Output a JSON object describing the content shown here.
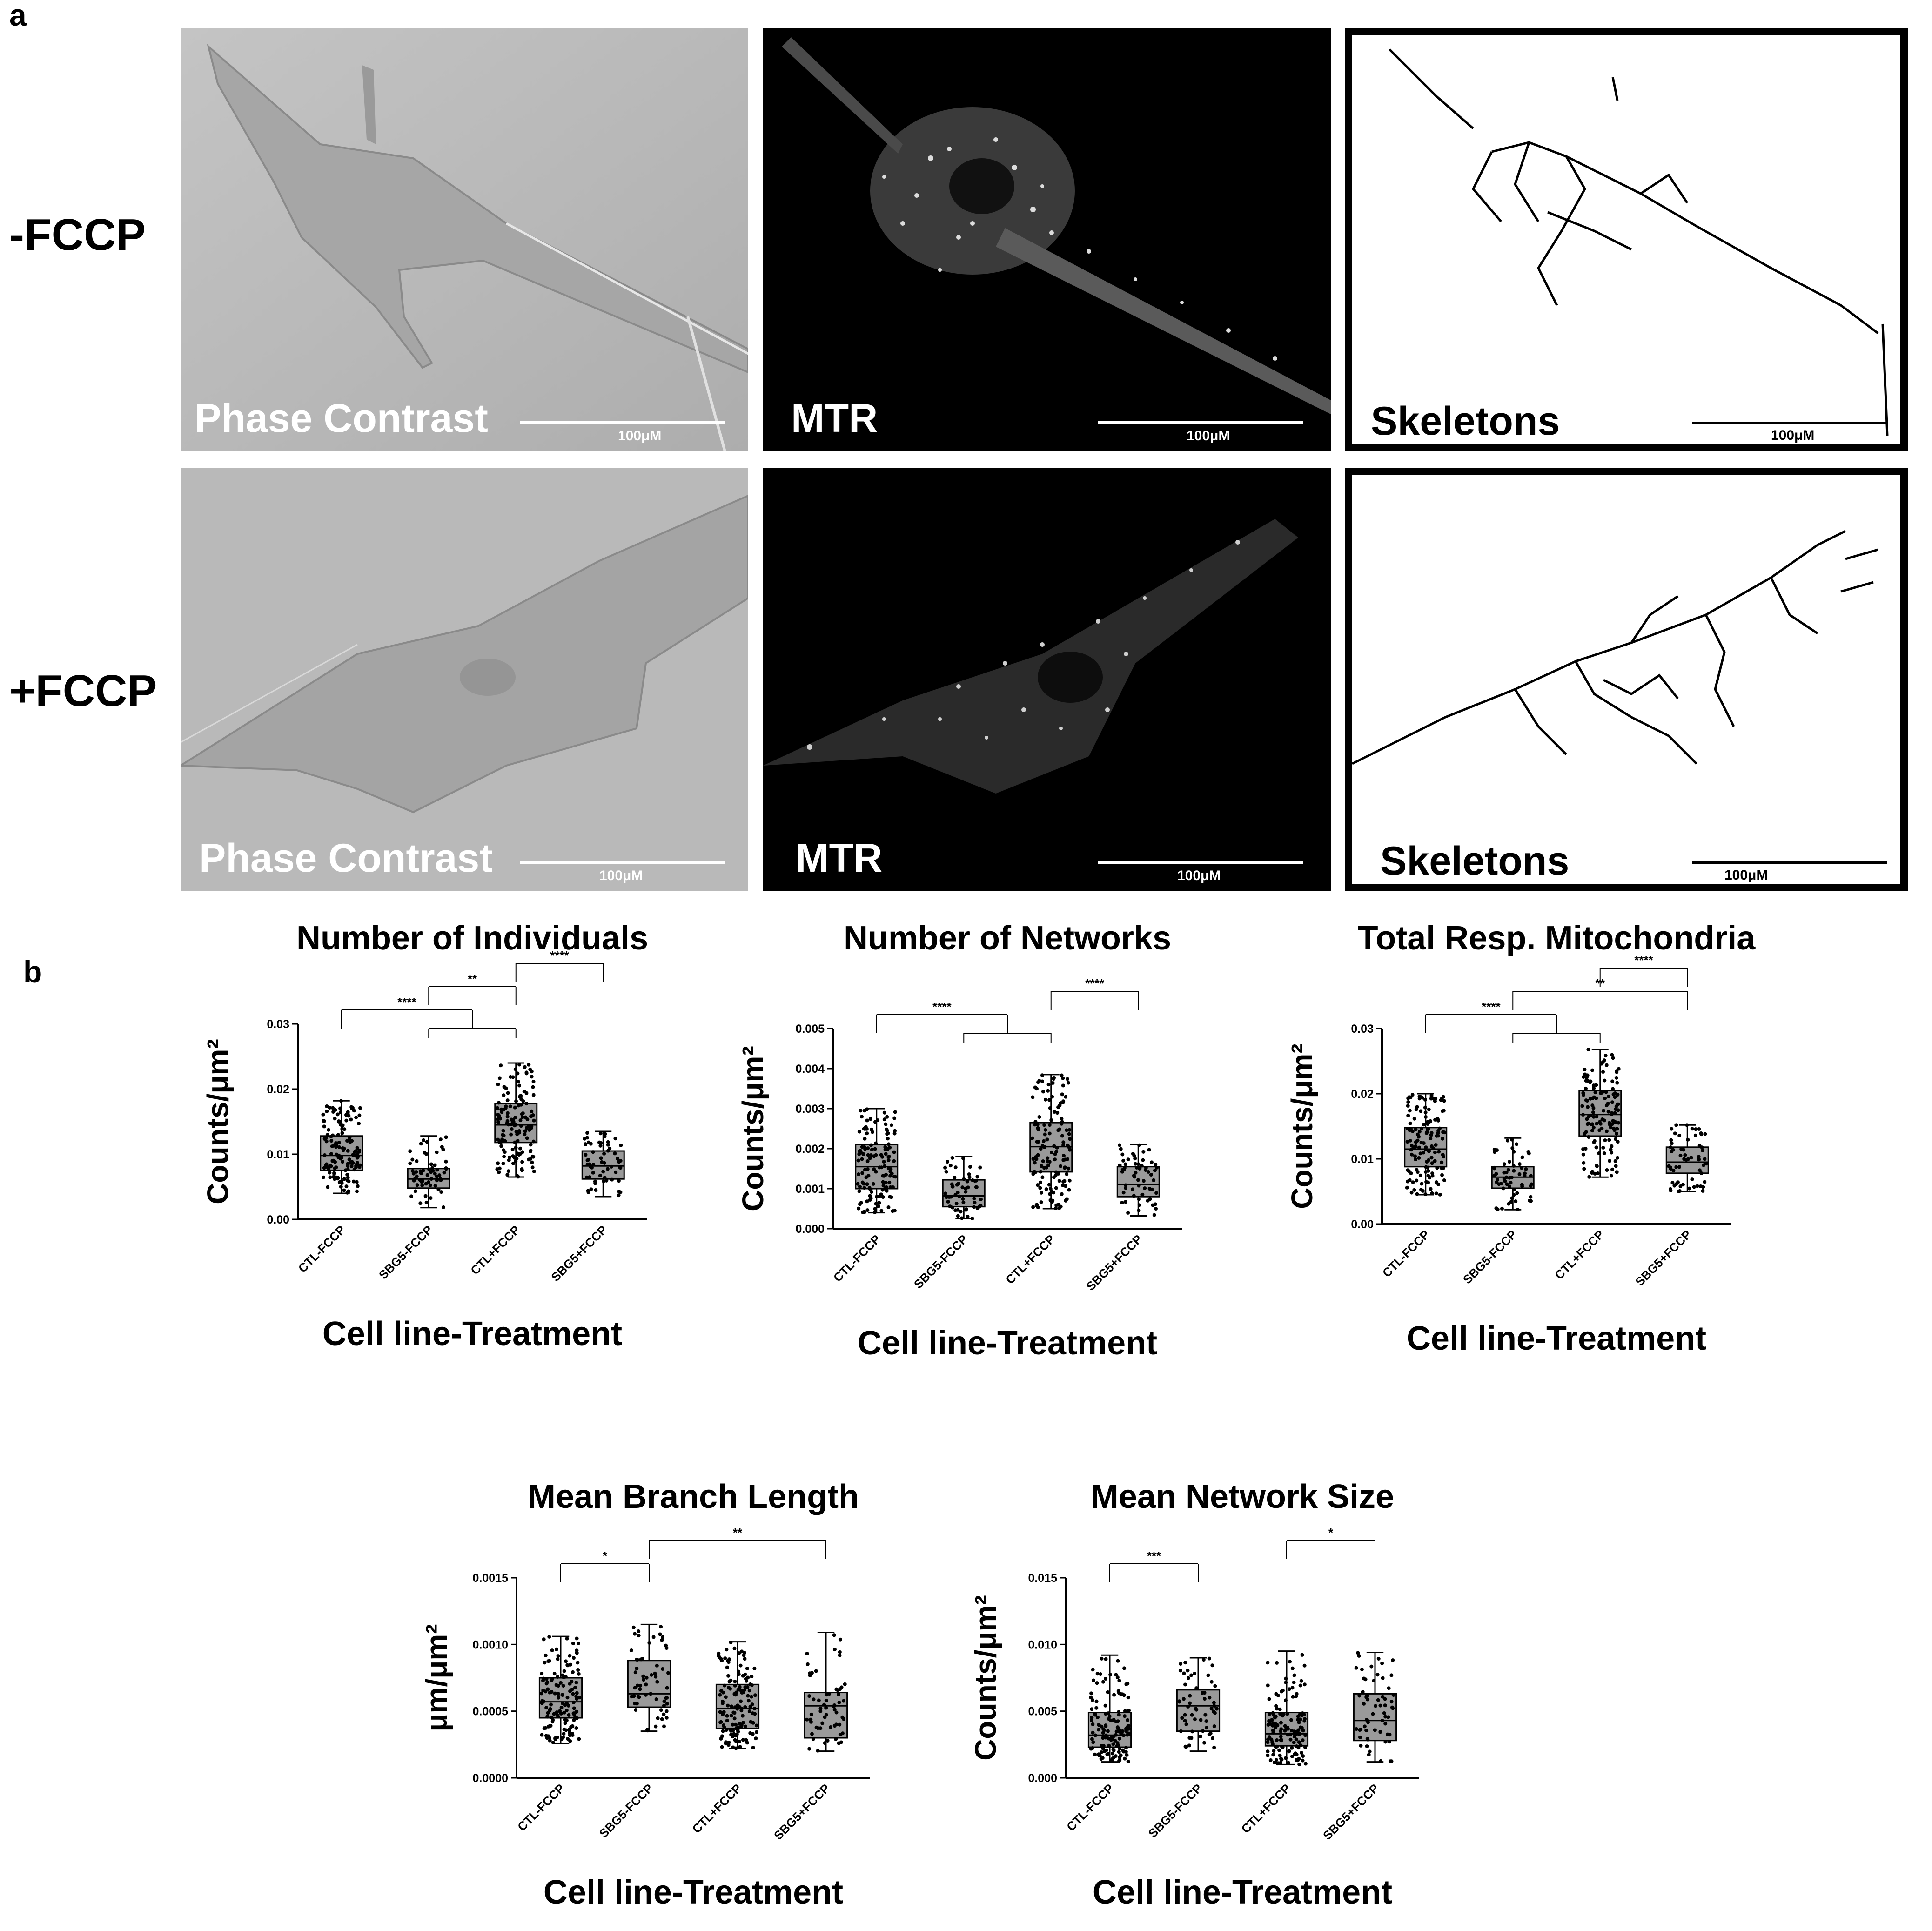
{
  "panel_a": {
    "letter": "a",
    "rows": [
      {
        "label": "-FCCP",
        "images": [
          {
            "label": "Phase Contrast",
            "scale": "100μM"
          },
          {
            "label": "MTR",
            "scale": "100μM"
          },
          {
            "label": "Skeletons",
            "scale": "100μM"
          }
        ]
      },
      {
        "label": "+FCCP",
        "images": [
          {
            "label": "Phase Contrast",
            "scale": "100μM"
          },
          {
            "label": "MTR",
            "scale": "100μM"
          },
          {
            "label": "Skeletons",
            "scale": "100μM"
          }
        ]
      }
    ]
  },
  "panel_b": {
    "letter": "b"
  },
  "chart_data": [
    {
      "type": "box",
      "title": "Number of Individuals",
      "xlabel": "Cell line-Treatment",
      "ylabel": "Counts/μm²",
      "ylim": [
        0,
        0.03
      ],
      "yticks": [
        "0.00",
        "0.01",
        "0.02",
        "0.03"
      ],
      "categories": [
        "CTL-FCCP",
        "SBG5-FCCP",
        "CTL+FCCP",
        "SBG5+FCCP"
      ],
      "boxes": [
        {
          "min": 0.004,
          "q1": 0.0075,
          "median": 0.0098,
          "q3": 0.0128,
          "max": 0.0182
        },
        {
          "min": 0.0018,
          "q1": 0.0048,
          "median": 0.0062,
          "q3": 0.0078,
          "max": 0.0128
        },
        {
          "min": 0.0065,
          "q1": 0.0118,
          "median": 0.0145,
          "q3": 0.0178,
          "max": 0.024
        },
        {
          "min": 0.0035,
          "q1": 0.0062,
          "median": 0.0082,
          "q3": 0.0105,
          "max": 0.0135
        }
      ],
      "n_points": [
        140,
        60,
        140,
        60
      ],
      "significance": [
        {
          "from": 0,
          "to": [
            1,
            2
          ],
          "label": "****"
        },
        {
          "from": 1,
          "to": 2,
          "label": "**"
        },
        {
          "from": 2,
          "to": 3,
          "label": "****"
        }
      ]
    },
    {
      "type": "box",
      "title": "Number of Networks",
      "xlabel": "Cell line-Treatment",
      "ylabel": "Counts/μm²",
      "ylim": [
        0,
        0.005
      ],
      "yticks": [
        "0.000",
        "0.001",
        "0.002",
        "0.003",
        "0.004",
        "0.005"
      ],
      "categories": [
        "CTL-FCCP",
        "SBG5-FCCP",
        "CTL+FCCP",
        "SBG5+FCCP"
      ],
      "boxes": [
        {
          "min": 0.0004,
          "q1": 0.001,
          "median": 0.00155,
          "q3": 0.0021,
          "max": 0.003
        },
        {
          "min": 0.00025,
          "q1": 0.00055,
          "median": 0.00082,
          "q3": 0.00122,
          "max": 0.0018
        },
        {
          "min": 0.0005,
          "q1": 0.00142,
          "median": 0.00205,
          "q3": 0.00265,
          "max": 0.00385
        },
        {
          "min": 0.00032,
          "q1": 0.0008,
          "median": 0.0011,
          "q3": 0.00155,
          "max": 0.0021
        }
      ],
      "n_points": [
        140,
        60,
        140,
        60
      ],
      "significance": [
        {
          "from": 0,
          "to": [
            1,
            2
          ],
          "label": "****"
        },
        {
          "from": 2,
          "to": 3,
          "label": "****"
        }
      ]
    },
    {
      "type": "box",
      "title": "Total Resp. Mitochondria",
      "xlabel": "Cell line-Treatment",
      "ylabel": "Counts/μm²",
      "ylim": [
        0,
        0.03
      ],
      "yticks": [
        "0.00",
        "0.01",
        "0.02",
        "0.03"
      ],
      "categories": [
        "CTL-FCCP",
        "SBG5-FCCP",
        "CTL+FCCP",
        "SBG5+FCCP"
      ],
      "boxes": [
        {
          "min": 0.0045,
          "q1": 0.0088,
          "median": 0.0115,
          "q3": 0.0148,
          "max": 0.02
        },
        {
          "min": 0.0022,
          "q1": 0.0055,
          "median": 0.0072,
          "q3": 0.0088,
          "max": 0.0132
        },
        {
          "min": 0.0072,
          "q1": 0.0135,
          "median": 0.0168,
          "q3": 0.0205,
          "max": 0.0268
        },
        {
          "min": 0.005,
          "q1": 0.0078,
          "median": 0.0095,
          "q3": 0.0118,
          "max": 0.0152
        }
      ],
      "n_points": [
        140,
        60,
        140,
        60
      ],
      "significance": [
        {
          "from": 0,
          "to": [
            1,
            2
          ],
          "label": "****"
        },
        {
          "from": 1,
          "to": 3,
          "label": "**"
        },
        {
          "from": 2,
          "to": 3,
          "label": "****"
        }
      ]
    },
    {
      "type": "box",
      "title": "Mean Branch Length",
      "xlabel": "Cell line-Treatment",
      "ylabel": "μm/μm²",
      "ylim": [
        0,
        0.0015
      ],
      "yticks": [
        "0.0000",
        "0.0005",
        "0.0010",
        "0.0015"
      ],
      "categories": [
        "CTL-FCCP",
        "SBG5-FCCP",
        "CTL+FCCP",
        "SBG5+FCCP"
      ],
      "boxes": [
        {
          "min": 0.00026,
          "q1": 0.00045,
          "median": 0.00057,
          "q3": 0.00075,
          "max": 0.00106
        },
        {
          "min": 0.00035,
          "q1": 0.00053,
          "median": 0.00063,
          "q3": 0.00088,
          "max": 0.00115
        },
        {
          "min": 0.00022,
          "q1": 0.00037,
          "median": 0.00052,
          "q3": 0.0007,
          "max": 0.00102
        },
        {
          "min": 0.0002,
          "q1": 0.0003,
          "median": 0.00054,
          "q3": 0.00064,
          "max": 0.00109
        }
      ],
      "n_points": [
        140,
        60,
        140,
        60
      ],
      "significance": [
        {
          "from": 0,
          "to": 1,
          "label": "*"
        },
        {
          "from": 1,
          "to": 3,
          "label": "**"
        }
      ]
    },
    {
      "type": "box",
      "title": "Mean Network Size",
      "xlabel": "Cell line-Treatment",
      "ylabel": "Counts/μm²",
      "ylim": [
        0,
        0.015
      ],
      "yticks": [
        "0.000",
        "0.005",
        "0.010",
        "0.015"
      ],
      "categories": [
        "CTL-FCCP",
        "SBG5-FCCP",
        "CTL+FCCP",
        "SBG5+FCCP"
      ],
      "boxes": [
        {
          "min": 0.0012,
          "q1": 0.0023,
          "median": 0.0032,
          "q3": 0.0049,
          "max": 0.0092
        },
        {
          "min": 0.002,
          "q1": 0.0035,
          "median": 0.0054,
          "q3": 0.0066,
          "max": 0.009
        },
        {
          "min": 0.001,
          "q1": 0.0024,
          "median": 0.0033,
          "q3": 0.0049,
          "max": 0.0095
        },
        {
          "min": 0.0012,
          "q1": 0.0028,
          "median": 0.0043,
          "q3": 0.0063,
          "max": 0.0094
        }
      ],
      "n_points": [
        140,
        60,
        140,
        60
      ],
      "significance": [
        {
          "from": 0,
          "to": 1,
          "label": "***"
        },
        {
          "from": 2,
          "to": 3,
          "label": "*"
        }
      ]
    }
  ]
}
